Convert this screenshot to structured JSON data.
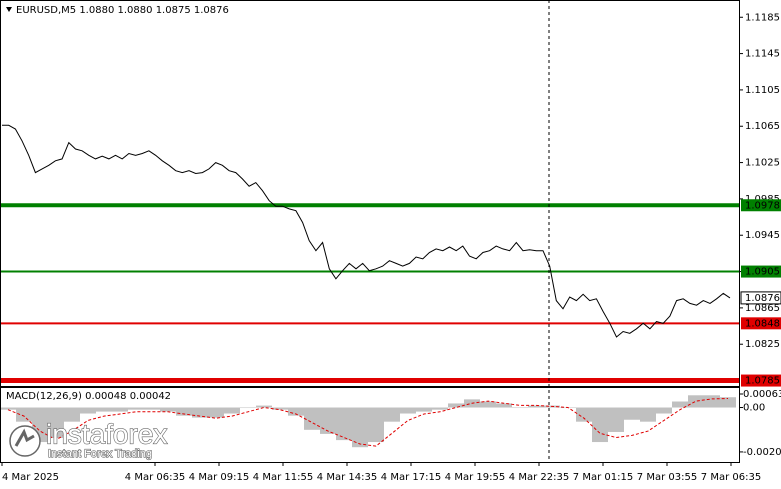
{
  "chart_data": [
    {
      "type": "line",
      "title": "EURUSD,M5",
      "ohlc": [
        "1.0880",
        "1.0880",
        "1.0875",
        "1.0876"
      ],
      "color": "#000000",
      "values": [
        1.1066,
        1.1066,
        1.1062,
        1.1049,
        1.1033,
        1.1014,
        1.1018,
        1.1022,
        1.1027,
        1.1029,
        1.1047,
        1.104,
        1.1038,
        1.1033,
        1.1029,
        1.1032,
        1.1029,
        1.1033,
        1.1029,
        1.1035,
        1.1033,
        1.1035,
        1.1038,
        1.1033,
        1.1027,
        1.1022,
        1.1016,
        1.1014,
        1.1016,
        1.1013,
        1.1014,
        1.1018,
        1.1025,
        1.1022,
        1.1016,
        1.1014,
        1.1007,
        1.0999,
        1.1003,
        1.0994,
        1.0983,
        1.0977,
        1.0977,
        1.0974,
        1.0972,
        1.0959,
        1.0939,
        1.0928,
        1.0937,
        1.0908,
        1.0897,
        1.0906,
        1.0914,
        1.0908,
        1.0914,
        1.0906,
        1.0908,
        1.0911,
        1.0917,
        1.0914,
        1.0911,
        1.0914,
        1.0921,
        1.0919,
        1.0926,
        1.093,
        1.0928,
        1.0932,
        1.0928,
        1.0933,
        1.0922,
        1.0919,
        1.0926,
        1.0928,
        1.0933,
        1.093,
        1.0928,
        1.0937,
        1.0928,
        1.0929,
        1.0928,
        1.0928,
        1.0911,
        1.0873,
        1.0864,
        1.0877,
        1.0873,
        1.088,
        1.0873,
        1.0875,
        1.0861,
        1.0848,
        1.0833,
        1.0839,
        1.0837,
        1.0842,
        1.0848,
        1.0842,
        1.085,
        1.0848,
        1.0856,
        1.0873,
        1.0875,
        1.087,
        1.0868,
        1.0873,
        1.087,
        1.0875,
        1.0881,
        1.0876
      ],
      "ylim": [
        1.0779,
        1.1204
      ],
      "yticks": [
        1.1185,
        1.1145,
        1.1105,
        1.1065,
        1.1025,
        1.0985,
        1.0945,
        1.0905,
        1.0865,
        1.0825
      ],
      "levels": [
        {
          "value": 1.0978,
          "color": "#008000",
          "width": 4
        },
        {
          "value": 1.0905,
          "color": "#008000",
          "width": 2
        },
        {
          "value": 1.0848,
          "color": "#e00000",
          "width": 2
        },
        {
          "value": 1.0785,
          "color": "#e00000",
          "width": 5
        }
      ],
      "current_price": 1.0876,
      "grid": false,
      "xtick_labels": [
        "4 Mar 2025",
        "4 Mar 06:35",
        "4 Mar 09:15",
        "4 Mar 11:55",
        "4 Mar 14:35",
        "4 Mar 17:15",
        "4 Mar 19:55",
        "4 Mar 22:35",
        "7 Mar 01:15",
        "7 Mar 03:55",
        "7 Mar 06:35"
      ]
    },
    {
      "type": "macd",
      "title": "MACD(12,26,9)",
      "series": [
        {
          "name": "MACD",
          "color": "#c0c0c0",
          "values": [
            -0.0001,
            -0.00066,
            -0.00161,
            -0.00142,
            -0.00066,
            -0.00028,
            -0.00019,
            -0.00019,
            -0.0001,
            -0.0001,
            -0.00019,
            -0.00038,
            -0.00047,
            -0.00047,
            -0.00028,
            0,
            9e-05,
            -0.0001,
            -0.00038,
            -0.00104,
            -0.00123,
            -0.00152,
            -0.00185,
            -0.00161,
            -0.00066,
            -0.00028,
            -0.00019,
            -0.0001,
            0.00019,
            0.00038,
            0.00028,
            0.00019,
            0,
            9e-05,
            9e-05,
            0,
            -0.00066,
            -0.00161,
            -0.00114,
            -0.00057,
            -0.00066,
            -0.00028,
            0.00028,
            0.00057,
            0.00057,
            0.00048
          ]
        },
        {
          "name": "Signal",
          "color": "#e00000",
          "values": [
            -0.0001,
            -0.0004,
            -0.0011,
            -0.0015,
            -0.0011,
            -0.0006,
            -0.0004,
            -0.0003,
            -0.0002,
            -0.0002,
            -0.0002,
            -0.0003,
            -0.0004,
            -0.0005,
            -0.0004,
            -0.0002,
            0,
            -0.0001,
            -0.0003,
            -0.0007,
            -0.0011,
            -0.0014,
            -0.0017,
            -0.0018,
            -0.0012,
            -0.0006,
            -0.0003,
            -0.0002,
            0,
            0.0002,
            0.0003,
            0.0002,
            0.0001,
            0.0001,
            5e-05,
            0,
            -0.0005,
            -0.0012,
            -0.0014,
            -0.0013,
            -0.0011,
            -0.0006,
            -0.0001,
            0.0003,
            0.0004,
            0.00042
          ]
        }
      ],
      "ylim": [
        -0.00254,
        0.00091
      ],
      "yticks": [
        0.00063,
        {
          "value": 0,
          "label": "0.00"
        },
        -0.00207
      ]
    }
  ],
  "watermark": {
    "brand": "instaforex",
    "tagline": "Instant Forex Trading"
  }
}
